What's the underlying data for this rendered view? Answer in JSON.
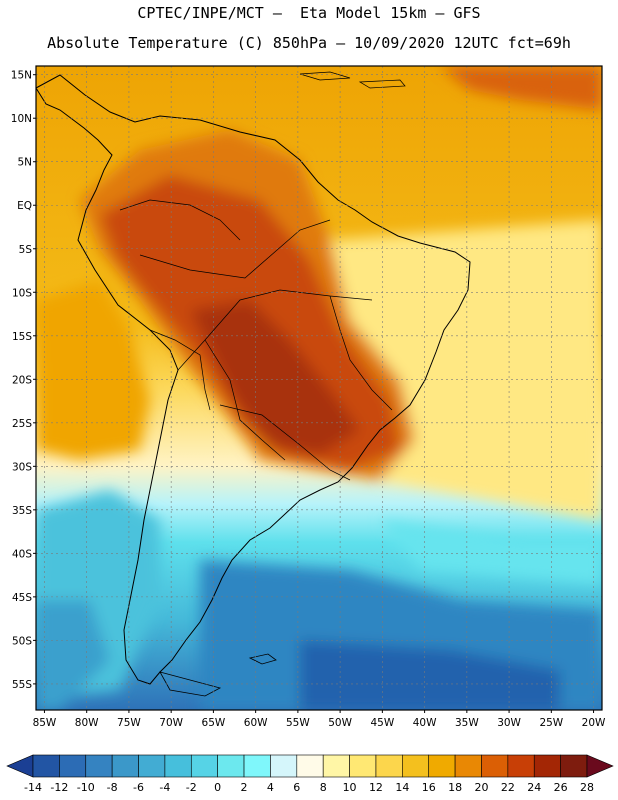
{
  "header": {
    "line1": "CPTEC/INPE/MCT –  Eta Model 15km – GFS",
    "line2": "Absolute Temperature (C) 850hPa – 10/09/2020 12UTC fct=69h"
  },
  "map": {
    "region": "South America",
    "lat_labels": [
      "15N",
      "10N",
      "5N",
      "EQ",
      "5S",
      "10S",
      "15S",
      "20S",
      "25S",
      "30S",
      "35S",
      "40S",
      "45S",
      "50S",
      "55S"
    ],
    "lon_labels": [
      "85W",
      "80W",
      "75W",
      "70W",
      "65W",
      "60W",
      "55W",
      "50W",
      "45W",
      "40W",
      "35W",
      "30W",
      "25W",
      "20W"
    ],
    "lat_range": [
      -58,
      16
    ],
    "lon_range": [
      -86,
      -19
    ]
  },
  "colorbar": {
    "labels": [
      "-14",
      "-12",
      "-10",
      "-8",
      "-6",
      "-4",
      "-2",
      "0",
      "2",
      "4",
      "6",
      "8",
      "10",
      "12",
      "14",
      "16",
      "18",
      "20",
      "22",
      "24",
      "26",
      "28"
    ],
    "colors": [
      "#1b3f94",
      "#2255a4",
      "#2c6cb5",
      "#3583c1",
      "#3b98c9",
      "#42acd3",
      "#46bfdc",
      "#56d3e6",
      "#6ce8ee",
      "#7ff7fb",
      "#d5f6fb",
      "#fffbe8",
      "#fff6a6",
      "#ffe873",
      "#fcd64c",
      "#f4c01e",
      "#f0aa00",
      "#e98804",
      "#db5f05",
      "#c83f06",
      "#a32605",
      "#7e1c0e",
      "#6a0a1d"
    ]
  }
}
